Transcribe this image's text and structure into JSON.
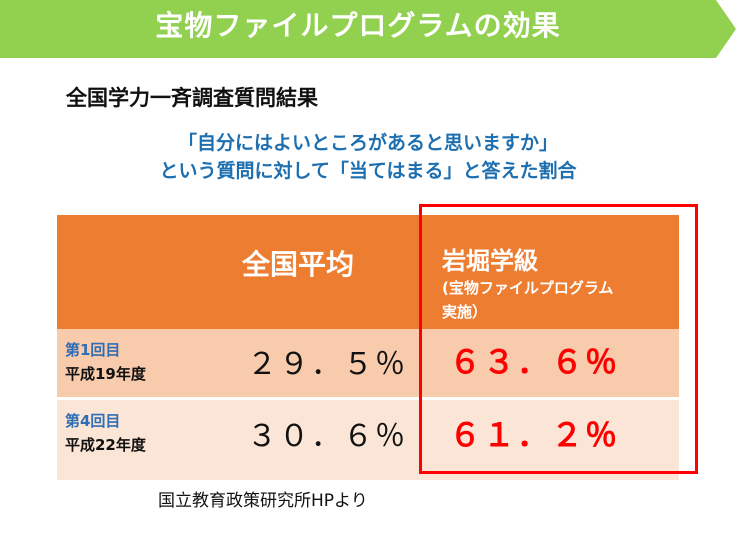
{
  "header": {
    "title": "宝物ファイルプログラムの効果",
    "color": "#92d050"
  },
  "subtitle": "全国学力一斉調査質問結果",
  "question": {
    "line1": "「自分にはよいところがあると思いますか」",
    "line2": "という質問に対して「当てはまる」と答えた割合"
  },
  "table": {
    "headers": {
      "national": "全国平均",
      "class_name": "岩堀学級",
      "class_note_line1": "(宝物ファイルプログラム",
      "class_note_line2": "実施）"
    },
    "rows": [
      {
        "label_line1": "第1回目",
        "label_line2": "平成19年度",
        "national": "２９．５％",
        "class": "６３．６％"
      },
      {
        "label_line1": "第4回目",
        "label_line2": "平成22年度",
        "national": "３０．６％",
        "class": "６１．２％"
      }
    ],
    "colors": {
      "header_bg": "#ed7d31",
      "row1_bg": "#f8cbad",
      "row2_bg": "#fbe5d6",
      "highlight": "#ff0000"
    }
  },
  "source": "国立教育政策研究所HPより"
}
